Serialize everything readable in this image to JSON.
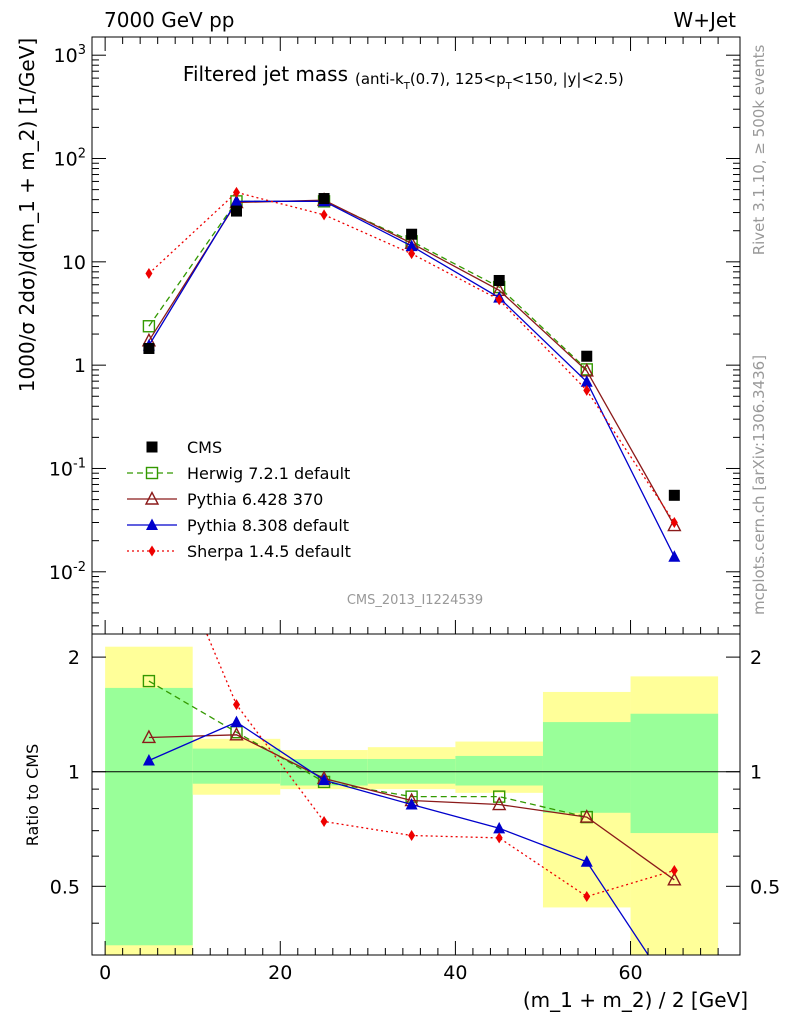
{
  "header": {
    "left": "7000 GeV pp",
    "right": "W+Jet"
  },
  "side_labels": {
    "rivet": "Rivet 3.1.10, ≥ 500k events",
    "mcplots": "mcplots.cern.ch [arXiv:1306.3436]"
  },
  "chart_data": {
    "type": "line",
    "title": "Filtered jet mass",
    "subtitle": "(anti-k_T(0.7), 125<p_T<150, |y|<2.5)",
    "analysis_label": "CMS_2013_I1224539",
    "xlabel": "(m_1 + m_2) / 2 [GeV]",
    "ylabel": "1000/σ 2dσ)/d(m_1 + m_2) [1/GeV]",
    "ratio_ylabel": "Ratio to CMS",
    "xlim": [
      -1.5,
      72.5
    ],
    "ylim": [
      0.0025,
      1500
    ],
    "yscale": "log",
    "ratio_ylim": [
      0.33,
      2.3
    ],
    "x_ticks": [
      "0",
      "20",
      "40",
      "60"
    ],
    "y_ticks": [
      "10^-2",
      "10^-1",
      "1",
      "10",
      "10^2",
      "10^3"
    ],
    "ratio_y_ticks": [
      "0.5",
      "1",
      "2"
    ],
    "bins": [
      [
        0,
        10
      ],
      [
        10,
        20
      ],
      [
        20,
        30
      ],
      [
        30,
        40
      ],
      [
        40,
        50
      ],
      [
        50,
        60
      ],
      [
        60,
        70
      ]
    ],
    "x": [
      5,
      15,
      25,
      35,
      45,
      55,
      65
    ],
    "data": {
      "name": "CMS",
      "values": [
        1.45,
        31,
        41,
        18.5,
        6.6,
        1.22,
        0.055
      ],
      "band_inner": [
        [
          0.35,
          1.66
        ],
        [
          0.93,
          1.15
        ],
        [
          0.92,
          1.08
        ],
        [
          0.93,
          1.08
        ],
        [
          0.92,
          1.1
        ],
        [
          0.78,
          1.35
        ],
        [
          0.69,
          1.42
        ]
      ],
      "band_outer": [
        [
          0.33,
          2.13
        ],
        [
          0.87,
          1.22
        ],
        [
          0.9,
          1.14
        ],
        [
          0.9,
          1.16
        ],
        [
          0.88,
          1.2
        ],
        [
          0.44,
          1.62
        ],
        [
          0.33,
          1.78
        ]
      ]
    },
    "series": [
      {
        "name": "Herwig 7.2.1 default",
        "color": "#339900",
        "marker": "open-square",
        "dash": "6,4",
        "values": [
          2.38,
          38.5,
          38.5,
          15.8,
          5.7,
          0.91,
          null
        ],
        "ratio": [
          1.73,
          1.27,
          0.94,
          0.86,
          0.86,
          0.76,
          null
        ]
      },
      {
        "name": "Pythia 6.428 370",
        "color": "#8b1a1a",
        "marker": "open-triangle",
        "dash": "",
        "values": [
          1.72,
          37.5,
          39.5,
          15.1,
          5.3,
          0.88,
          0.028
        ],
        "ratio": [
          1.23,
          1.25,
          0.96,
          0.84,
          0.82,
          0.76,
          0.52
        ]
      },
      {
        "name": "Pythia 8.308 default",
        "color": "#0000cc",
        "marker": "filled-triangle",
        "dash": "",
        "values": [
          1.55,
          38.5,
          38.5,
          14.2,
          4.5,
          0.69,
          0.014
        ],
        "ratio": [
          1.07,
          1.35,
          0.95,
          0.82,
          0.71,
          0.58,
          0.26
        ]
      },
      {
        "name": "Sherpa 1.4.5 default",
        "color": "#ee0000",
        "marker": "filled-diamond",
        "dash": "2,3",
        "values": [
          7.7,
          47,
          28.5,
          12,
          4.3,
          0.57,
          0.03
        ],
        "ratio": [
          5.3,
          1.5,
          0.74,
          0.68,
          0.67,
          0.47,
          0.55
        ]
      }
    ]
  }
}
